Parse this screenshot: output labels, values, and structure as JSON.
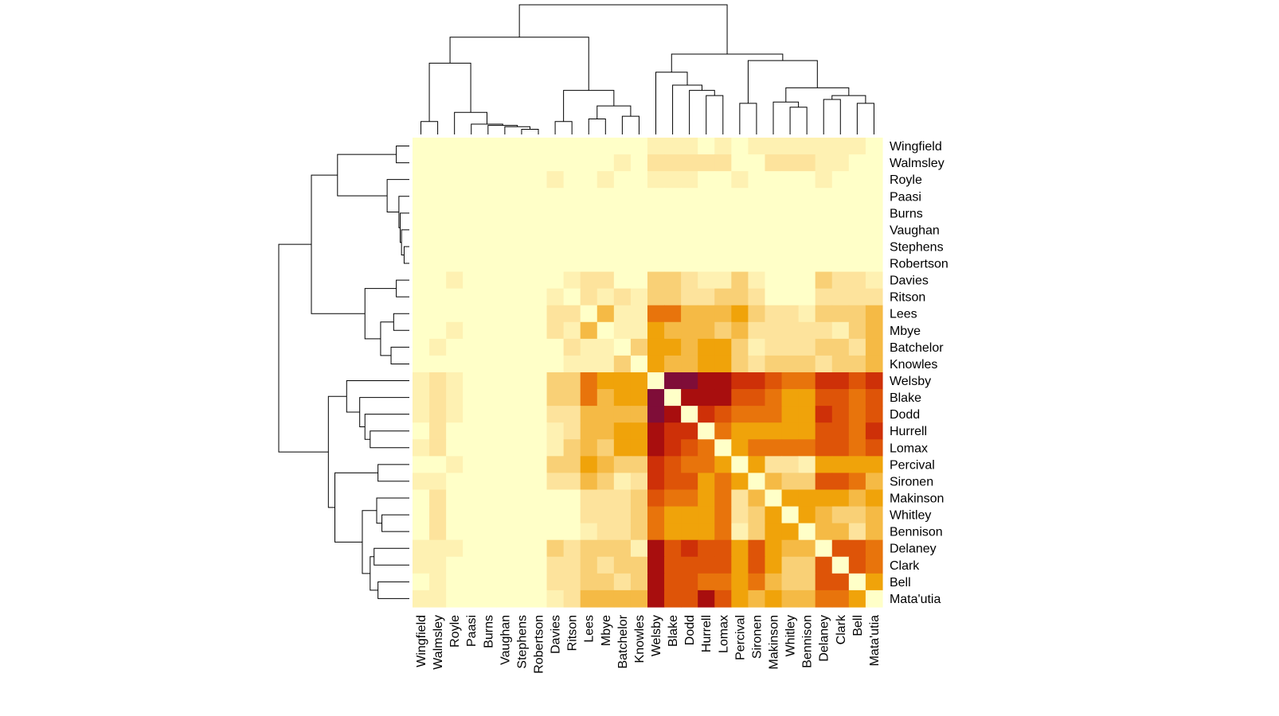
{
  "chart_data": {
    "type": "heatmap",
    "title": "",
    "xlabel": "",
    "ylabel": "",
    "legend": "none",
    "grid": false,
    "row_dendrogram": true,
    "col_dendrogram": true,
    "color_scale": {
      "name": "heat",
      "levels": [
        "#FFFFC8",
        "#FEF1B2",
        "#FDE39C",
        "#F9D076",
        "#F5BA45",
        "#F0A30A",
        "#E8740C",
        "#DE5408",
        "#CE3008",
        "#A80E0E",
        "#7F0D38"
      ]
    },
    "row_labels": [
      "Wingfield",
      "Walmsley",
      "Royle",
      "Paasi",
      "Burns",
      "Vaughan",
      "Stephens",
      "Robertson",
      "Davies",
      "Ritson",
      "Lees",
      "Mbye",
      "Batchelor",
      "Knowles",
      "Welsby",
      "Blake",
      "Dodd",
      "Hurrell",
      "Lomax",
      "Percival",
      "Sironen",
      "Makinson",
      "Whitley",
      "Bennison",
      "Delaney",
      "Clark",
      "Bell",
      "Mata'utia"
    ],
    "col_labels": [
      "Wingfield",
      "Walmsley",
      "Royle",
      "Paasi",
      "Burns",
      "Vaughan",
      "Stephens",
      "Robertson",
      "Davies",
      "Ritson",
      "Lees",
      "Mbye",
      "Batchelor",
      "Knowles",
      "Welsby",
      "Blake",
      "Dodd",
      "Hurrell",
      "Lomax",
      "Percival",
      "Sironen",
      "Makinson",
      "Whitley",
      "Bennison",
      "Delaney",
      "Clark",
      "Bell",
      "Mata'utia"
    ],
    "matrix": [
      [
        0,
        0,
        0,
        0,
        0,
        0,
        0,
        0,
        0,
        0,
        0,
        0,
        0,
        0,
        1,
        1,
        1,
        0,
        1,
        0,
        1,
        1,
        1,
        1,
        1,
        1,
        1,
        0
      ],
      [
        0,
        0,
        0,
        0,
        0,
        0,
        0,
        0,
        0,
        0,
        0,
        0,
        1,
        0,
        2,
        2,
        2,
        2,
        2,
        0,
        0,
        2,
        2,
        2,
        1,
        1,
        0,
        0
      ],
      [
        0,
        0,
        0,
        0,
        0,
        0,
        0,
        0,
        1,
        0,
        0,
        1,
        0,
        0,
        1,
        1,
        1,
        0,
        0,
        1,
        0,
        0,
        0,
        0,
        1,
        0,
        0,
        0
      ],
      [
        0,
        0,
        0,
        0,
        0,
        0,
        0,
        0,
        0,
        0,
        0,
        0,
        0,
        0,
        0,
        0,
        0,
        0,
        0,
        0,
        0,
        0,
        0,
        0,
        0,
        0,
        0,
        0
      ],
      [
        0,
        0,
        0,
        0,
        0,
        0,
        0,
        0,
        0,
        0,
        0,
        0,
        0,
        0,
        0,
        0,
        0,
        0,
        0,
        0,
        0,
        0,
        0,
        0,
        0,
        0,
        0,
        0
      ],
      [
        0,
        0,
        0,
        0,
        0,
        0,
        0,
        0,
        0,
        0,
        0,
        0,
        0,
        0,
        0,
        0,
        0,
        0,
        0,
        0,
        0,
        0,
        0,
        0,
        0,
        0,
        0,
        0
      ],
      [
        0,
        0,
        0,
        0,
        0,
        0,
        0,
        0,
        0,
        0,
        0,
        0,
        0,
        0,
        0,
        0,
        0,
        0,
        0,
        0,
        0,
        0,
        0,
        0,
        0,
        0,
        0,
        0
      ],
      [
        0,
        0,
        0,
        0,
        0,
        0,
        0,
        0,
        0,
        0,
        0,
        0,
        0,
        0,
        0,
        0,
        0,
        0,
        0,
        0,
        0,
        0,
        0,
        0,
        0,
        0,
        0,
        0
      ],
      [
        0,
        0,
        1,
        0,
        0,
        0,
        0,
        0,
        0,
        1,
        2,
        2,
        0,
        0,
        3,
        3,
        2,
        1,
        1,
        3,
        1,
        0,
        0,
        0,
        3,
        2,
        2,
        1
      ],
      [
        0,
        0,
        0,
        0,
        0,
        0,
        0,
        0,
        1,
        0,
        2,
        1,
        2,
        1,
        3,
        3,
        2,
        2,
        3,
        3,
        2,
        0,
        0,
        0,
        2,
        2,
        2,
        2
      ],
      [
        0,
        0,
        0,
        0,
        0,
        0,
        0,
        0,
        2,
        2,
        0,
        4,
        1,
        1,
        6,
        6,
        4,
        4,
        4,
        5,
        3,
        2,
        2,
        1,
        3,
        3,
        3,
        4
      ],
      [
        0,
        0,
        1,
        0,
        0,
        0,
        0,
        0,
        2,
        1,
        4,
        0,
        1,
        1,
        5,
        4,
        4,
        4,
        3,
        4,
        2,
        2,
        2,
        2,
        2,
        1,
        3,
        4
      ],
      [
        0,
        1,
        0,
        0,
        0,
        0,
        0,
        0,
        0,
        2,
        1,
        1,
        0,
        3,
        5,
        5,
        4,
        5,
        5,
        3,
        1,
        2,
        2,
        2,
        3,
        3,
        2,
        4
      ],
      [
        0,
        0,
        0,
        0,
        0,
        0,
        0,
        0,
        0,
        1,
        1,
        1,
        3,
        0,
        5,
        4,
        4,
        5,
        5,
        3,
        2,
        3,
        3,
        3,
        2,
        3,
        3,
        4
      ],
      [
        1,
        2,
        1,
        0,
        0,
        0,
        0,
        0,
        3,
        3,
        6,
        5,
        5,
        5,
        0,
        10,
        10,
        9,
        9,
        8,
        8,
        7,
        6,
        6,
        8,
        8,
        7,
        8
      ],
      [
        1,
        2,
        1,
        0,
        0,
        0,
        0,
        0,
        3,
        3,
        6,
        4,
        5,
        5,
        10,
        0,
        9,
        9,
        9,
        7,
        7,
        6,
        5,
        5,
        7,
        7,
        6,
        7
      ],
      [
        1,
        2,
        1,
        0,
        0,
        0,
        0,
        0,
        2,
        2,
        4,
        4,
        4,
        4,
        10,
        9,
        0,
        8,
        7,
        6,
        6,
        6,
        5,
        5,
        8,
        7,
        6,
        7
      ],
      [
        0,
        2,
        0,
        0,
        0,
        0,
        0,
        0,
        1,
        2,
        4,
        4,
        5,
        5,
        9,
        8,
        8,
        0,
        6,
        5,
        5,
        5,
        5,
        5,
        7,
        7,
        6,
        8
      ],
      [
        1,
        2,
        0,
        0,
        0,
        0,
        0,
        0,
        1,
        3,
        4,
        3,
        5,
        5,
        9,
        8,
        7,
        6,
        0,
        5,
        6,
        6,
        6,
        6,
        7,
        7,
        6,
        7
      ],
      [
        0,
        0,
        1,
        0,
        0,
        0,
        0,
        0,
        3,
        3,
        5,
        4,
        3,
        3,
        8,
        7,
        6,
        6,
        5,
        0,
        5,
        2,
        2,
        1,
        5,
        5,
        5,
        5
      ],
      [
        1,
        1,
        0,
        0,
        0,
        0,
        0,
        0,
        2,
        2,
        4,
        3,
        1,
        2,
        8,
        7,
        7,
        5,
        6,
        5,
        0,
        4,
        3,
        3,
        7,
        7,
        6,
        4
      ],
      [
        0,
        2,
        0,
        0,
        0,
        0,
        0,
        0,
        0,
        0,
        2,
        2,
        2,
        3,
        7,
        6,
        6,
        5,
        6,
        2,
        4,
        0,
        5,
        5,
        5,
        5,
        4,
        5
      ],
      [
        0,
        2,
        0,
        0,
        0,
        0,
        0,
        0,
        0,
        0,
        2,
        2,
        2,
        3,
        6,
        5,
        5,
        5,
        6,
        2,
        3,
        5,
        0,
        5,
        4,
        3,
        3,
        4
      ],
      [
        0,
        2,
        0,
        0,
        0,
        0,
        0,
        0,
        0,
        0,
        1,
        2,
        2,
        3,
        6,
        5,
        5,
        5,
        6,
        1,
        3,
        5,
        5,
        0,
        4,
        4,
        2,
        4
      ],
      [
        1,
        1,
        1,
        0,
        0,
        0,
        0,
        0,
        3,
        2,
        3,
        3,
        3,
        1,
        9,
        7,
        8,
        7,
        7,
        5,
        7,
        5,
        4,
        4,
        0,
        7,
        7,
        6
      ],
      [
        1,
        1,
        0,
        0,
        0,
        0,
        0,
        0,
        2,
        2,
        3,
        2,
        3,
        3,
        9,
        7,
        7,
        7,
        7,
        5,
        7,
        5,
        3,
        3,
        7,
        0,
        7,
        6
      ],
      [
        0,
        1,
        0,
        0,
        0,
        0,
        0,
        0,
        2,
        2,
        3,
        3,
        2,
        3,
        9,
        7,
        7,
        6,
        6,
        5,
        6,
        4,
        3,
        3,
        7,
        7,
        0,
        5
      ],
      [
        1,
        1,
        0,
        0,
        0,
        0,
        0,
        0,
        1,
        2,
        4,
        4,
        4,
        4,
        9,
        7,
        7,
        9,
        7,
        5,
        4,
        5,
        4,
        4,
        6,
        6,
        5,
        0
      ]
    ]
  }
}
